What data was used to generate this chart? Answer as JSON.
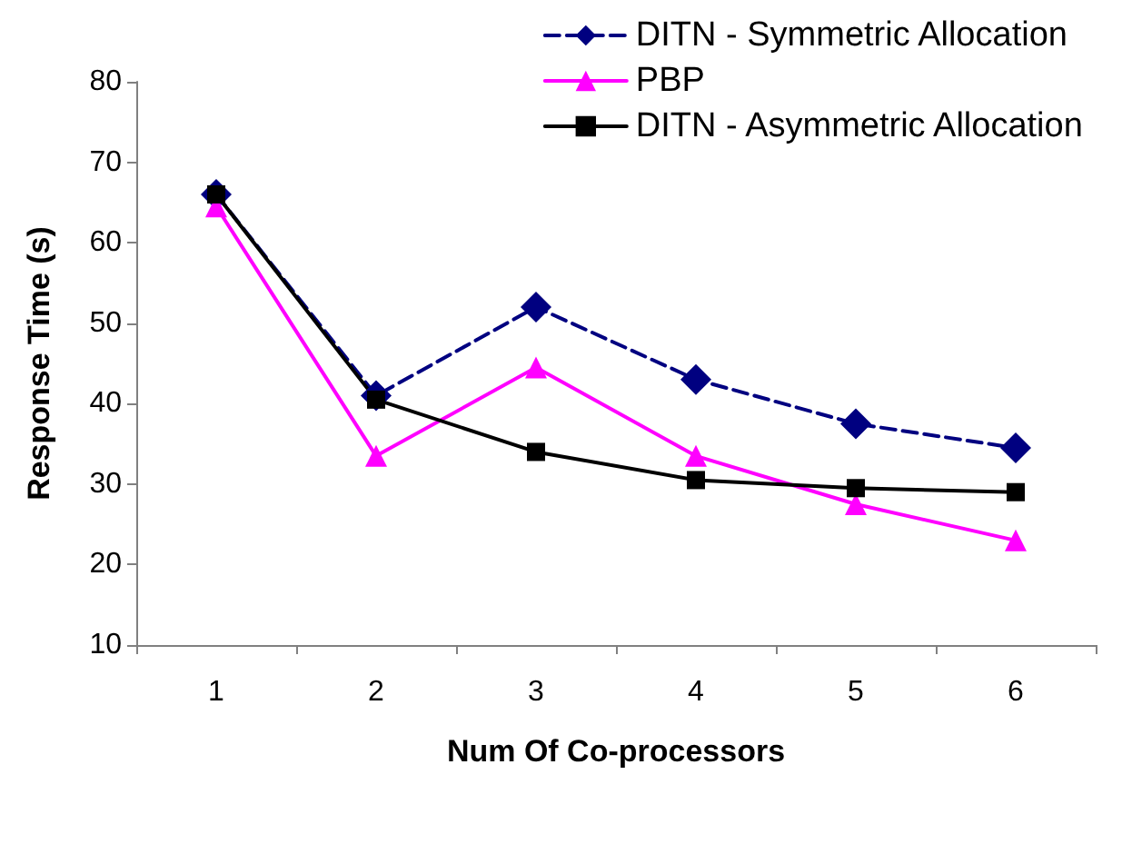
{
  "chart_data": {
    "type": "line",
    "xlabel": "Num Of Co-processors",
    "ylabel": "Response Time (s)",
    "categories": [
      "1",
      "2",
      "3",
      "4",
      "5",
      "6"
    ],
    "series": [
      {
        "name": "DITN - Symmetric Allocation",
        "color": "#000080",
        "marker": "diamond",
        "line_style": "dashed",
        "values": [
          66,
          41,
          52,
          43,
          37.5,
          34.5
        ]
      },
      {
        "name": "PBP",
        "color": "#ff00ff",
        "marker": "triangle",
        "line_style": "solid",
        "values": [
          64.5,
          33.5,
          44.5,
          33.5,
          27.5,
          23
        ]
      },
      {
        "name": "DITN - Asymmetric Allocation",
        "color": "#000000",
        "marker": "square",
        "line_style": "solid",
        "values": [
          66,
          40.5,
          34,
          30.5,
          29.5,
          29
        ]
      }
    ],
    "ylim": [
      10,
      80
    ],
    "yticks": [
      10,
      20,
      30,
      40,
      50,
      60,
      70,
      80
    ],
    "grid": false,
    "legend": "top right"
  }
}
